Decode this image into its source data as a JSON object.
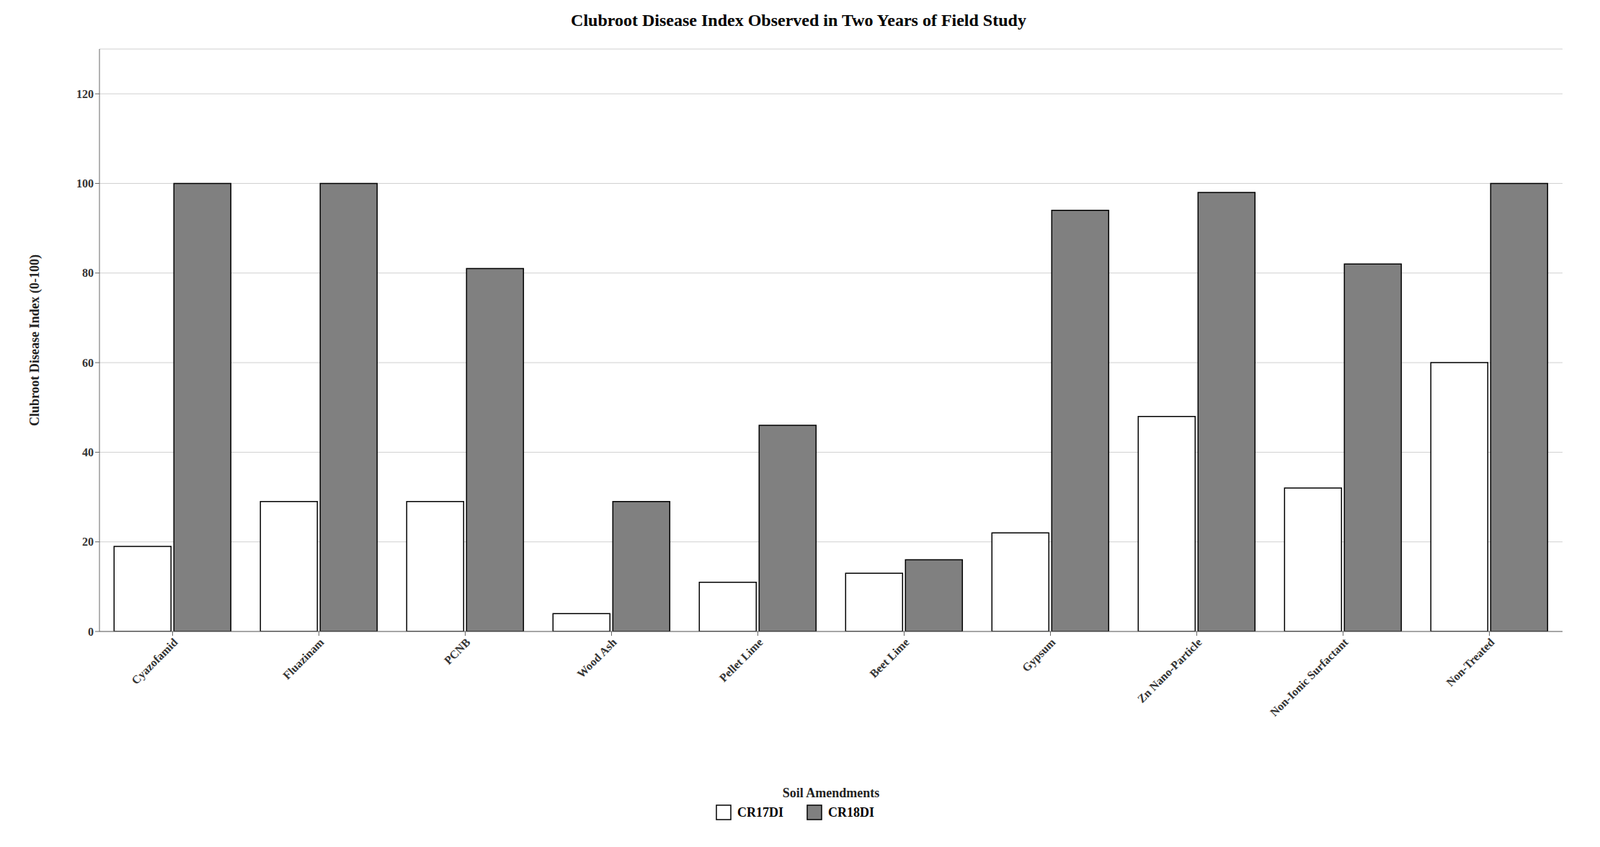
{
  "chart_data": {
    "type": "bar",
    "title": "Clubroot Disease Index Observed in Two Years of Field Study",
    "xlabel": "Soil Amendments",
    "ylabel": "Clubroot Disease Index (0-100)",
    "categories": [
      "Cyazofamid",
      "Fluazinam",
      "PCNB",
      "Wood Ash",
      "Pellet Lime",
      "Beet Lime",
      "Gypsum",
      "Zn Nano-Particle",
      "Non-Ionic Surfactant",
      "Non-Treated"
    ],
    "series": [
      {
        "name": "CR17DI",
        "color": "#ffffff",
        "values": [
          19,
          29,
          29,
          4,
          11,
          13,
          22,
          48,
          32,
          60
        ]
      },
      {
        "name": "CR18DI",
        "color": "#808080",
        "values": [
          100,
          100,
          81,
          29,
          46,
          16,
          94,
          98,
          82,
          100
        ]
      }
    ],
    "ylim": [
      0,
      130
    ],
    "yticks": [
      0,
      20,
      40,
      60,
      80,
      100,
      120
    ],
    "grid": true,
    "legend": "bottom"
  }
}
